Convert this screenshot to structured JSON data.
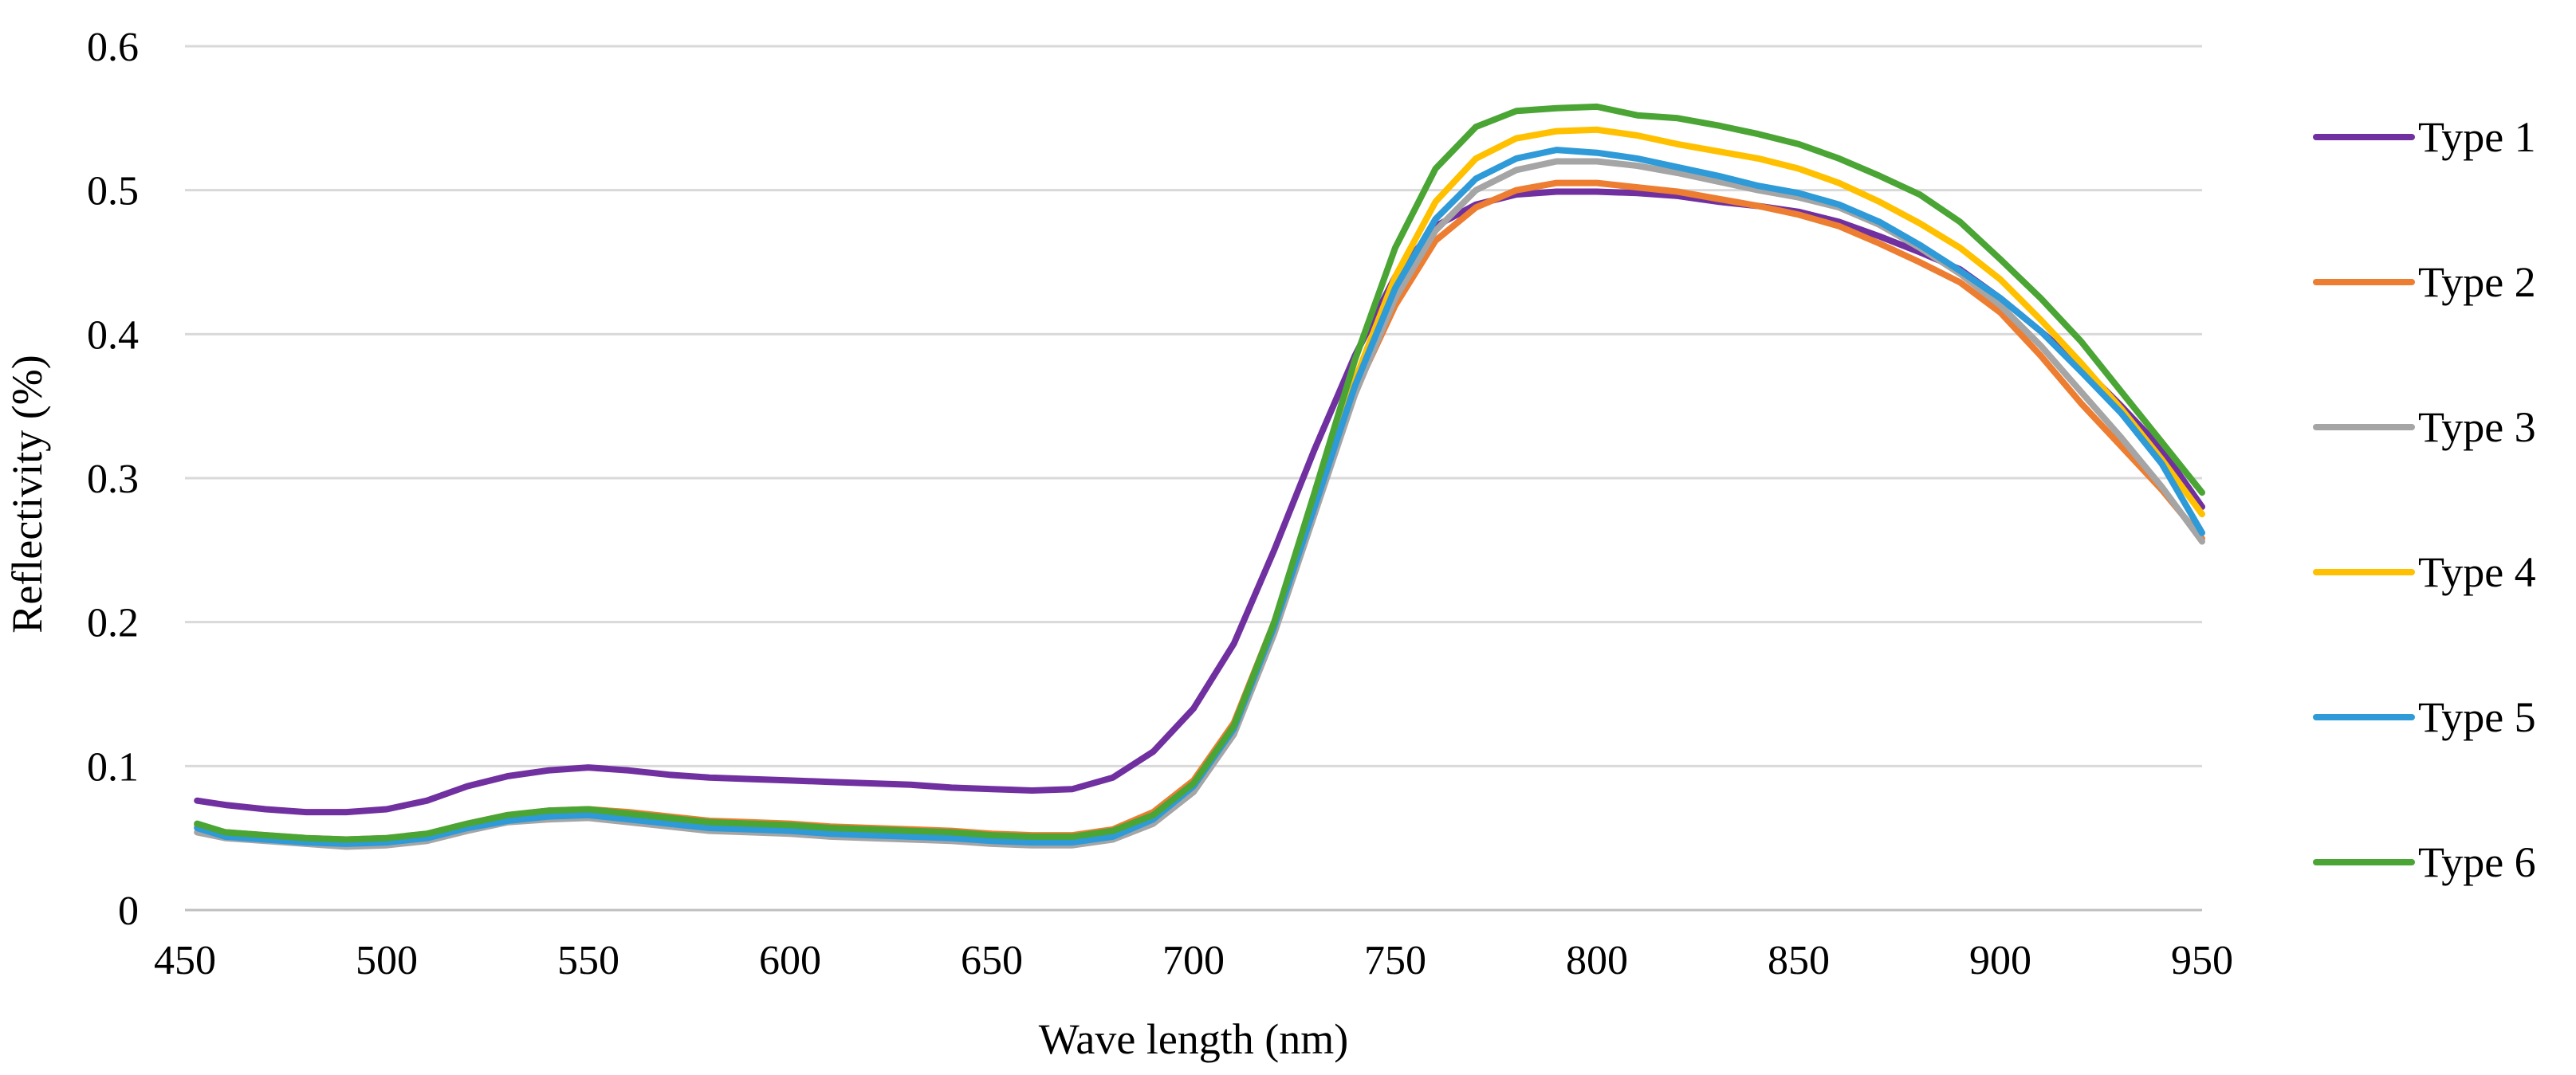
{
  "chart_data": {
    "type": "line",
    "title": "",
    "xlabel": "Wave length (nm)",
    "ylabel": "Reflectivity (%)",
    "xlim": [
      450,
      950
    ],
    "ylim": [
      0,
      0.6
    ],
    "x_ticks": [
      "450",
      "500",
      "550",
      "600",
      "650",
      "700",
      "750",
      "800",
      "850",
      "900",
      "950"
    ],
    "y_ticks": [
      "0",
      "0.1",
      "0.2",
      "0.3",
      "0.4",
      "0.5",
      "0.6"
    ],
    "grid": true,
    "legend_position": "right",
    "x": [
      453,
      460,
      470,
      480,
      490,
      500,
      510,
      520,
      530,
      540,
      550,
      560,
      570,
      580,
      590,
      600,
      610,
      620,
      630,
      640,
      650,
      660,
      670,
      680,
      690,
      700,
      710,
      720,
      730,
      740,
      750,
      760,
      770,
      780,
      790,
      800,
      810,
      820,
      830,
      840,
      850,
      860,
      870,
      880,
      890,
      900,
      910,
      920,
      930,
      940,
      950
    ],
    "series": [
      {
        "name": "Type 1",
        "color": "#7030a0",
        "values": [
          0.076,
          0.073,
          0.07,
          0.068,
          0.068,
          0.07,
          0.076,
          0.086,
          0.093,
          0.097,
          0.099,
          0.097,
          0.094,
          0.092,
          0.091,
          0.09,
          0.089,
          0.088,
          0.087,
          0.085,
          0.084,
          0.083,
          0.084,
          0.092,
          0.11,
          0.14,
          0.185,
          0.25,
          0.32,
          0.385,
          0.44,
          0.475,
          0.49,
          0.497,
          0.499,
          0.499,
          0.498,
          0.496,
          0.492,
          0.489,
          0.485,
          0.478,
          0.468,
          0.457,
          0.445,
          0.425,
          0.402,
          0.378,
          0.35,
          0.32,
          0.28
        ]
      },
      {
        "name": "Type 2",
        "color": "#ed7d31",
        "values": [
          0.059,
          0.054,
          0.052,
          0.05,
          0.049,
          0.05,
          0.053,
          0.06,
          0.066,
          0.069,
          0.07,
          0.068,
          0.065,
          0.062,
          0.061,
          0.06,
          0.058,
          0.057,
          0.056,
          0.055,
          0.053,
          0.052,
          0.052,
          0.056,
          0.068,
          0.09,
          0.13,
          0.2,
          0.28,
          0.36,
          0.42,
          0.465,
          0.488,
          0.5,
          0.505,
          0.505,
          0.502,
          0.499,
          0.494,
          0.489,
          0.483,
          0.475,
          0.463,
          0.45,
          0.436,
          0.415,
          0.385,
          0.352,
          0.322,
          0.292,
          0.258
        ]
      },
      {
        "name": "Type 3",
        "color": "#a5a5a5",
        "values": [
          0.054,
          0.05,
          0.048,
          0.046,
          0.044,
          0.045,
          0.048,
          0.055,
          0.061,
          0.063,
          0.064,
          0.061,
          0.058,
          0.055,
          0.054,
          0.053,
          0.051,
          0.05,
          0.049,
          0.048,
          0.046,
          0.045,
          0.045,
          0.049,
          0.06,
          0.082,
          0.122,
          0.192,
          0.275,
          0.358,
          0.425,
          0.472,
          0.5,
          0.514,
          0.52,
          0.52,
          0.517,
          0.512,
          0.506,
          0.5,
          0.495,
          0.488,
          0.476,
          0.46,
          0.442,
          0.42,
          0.392,
          0.36,
          0.328,
          0.294,
          0.256
        ]
      },
      {
        "name": "Type 4",
        "color": "#ffc000",
        "values": [
          0.058,
          0.052,
          0.05,
          0.048,
          0.047,
          0.048,
          0.051,
          0.058,
          0.063,
          0.066,
          0.067,
          0.064,
          0.061,
          0.058,
          0.057,
          0.056,
          0.054,
          0.053,
          0.052,
          0.051,
          0.049,
          0.048,
          0.048,
          0.052,
          0.064,
          0.087,
          0.127,
          0.198,
          0.282,
          0.368,
          0.44,
          0.492,
          0.522,
          0.536,
          0.541,
          0.542,
          0.538,
          0.532,
          0.527,
          0.522,
          0.515,
          0.505,
          0.492,
          0.477,
          0.46,
          0.438,
          0.41,
          0.38,
          0.348,
          0.313,
          0.275
        ]
      },
      {
        "name": "Type 5",
        "color": "#2e9ad8",
        "values": [
          0.057,
          0.051,
          0.049,
          0.047,
          0.046,
          0.047,
          0.05,
          0.057,
          0.062,
          0.065,
          0.066,
          0.063,
          0.06,
          0.057,
          0.056,
          0.055,
          0.053,
          0.052,
          0.051,
          0.05,
          0.048,
          0.047,
          0.047,
          0.051,
          0.063,
          0.086,
          0.126,
          0.197,
          0.28,
          0.364,
          0.432,
          0.48,
          0.508,
          0.522,
          0.528,
          0.526,
          0.522,
          0.516,
          0.51,
          0.503,
          0.498,
          0.49,
          0.478,
          0.462,
          0.444,
          0.425,
          0.402,
          0.374,
          0.345,
          0.31,
          0.262
        ]
      },
      {
        "name": "Type 6",
        "color": "#4aa535",
        "values": [
          0.06,
          0.054,
          0.052,
          0.05,
          0.049,
          0.05,
          0.053,
          0.06,
          0.066,
          0.069,
          0.07,
          0.067,
          0.064,
          0.061,
          0.06,
          0.059,
          0.057,
          0.056,
          0.055,
          0.054,
          0.052,
          0.051,
          0.051,
          0.055,
          0.066,
          0.088,
          0.128,
          0.2,
          0.29,
          0.382,
          0.46,
          0.515,
          0.544,
          0.555,
          0.557,
          0.558,
          0.552,
          0.55,
          0.545,
          0.539,
          0.532,
          0.522,
          0.51,
          0.497,
          0.478,
          0.452,
          0.425,
          0.395,
          0.36,
          0.325,
          0.29
        ]
      }
    ]
  }
}
